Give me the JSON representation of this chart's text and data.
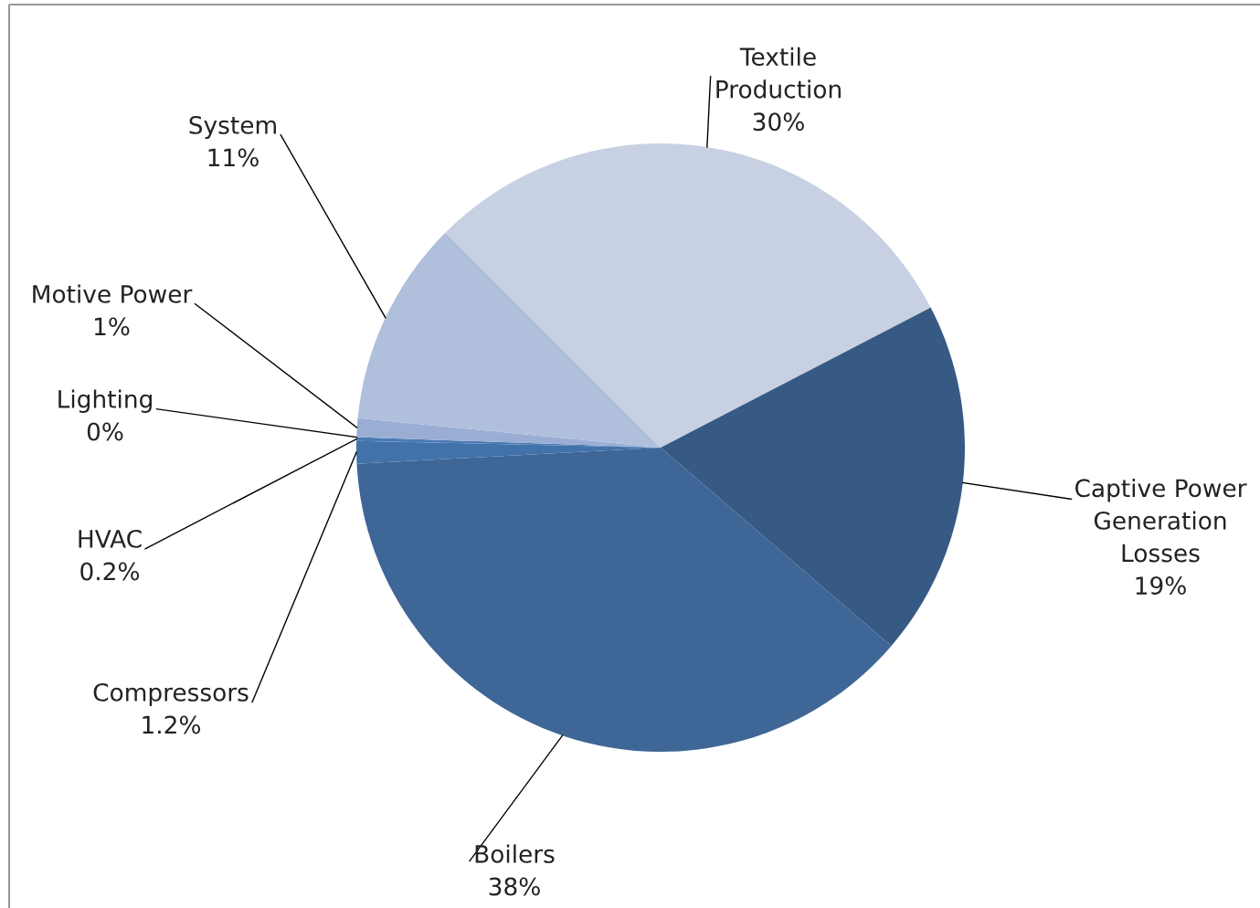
{
  "chart_data": {
    "type": "pie",
    "categories": [
      "Textile\nProduction",
      "Captive Power\nGeneration\nLosses",
      "Boilers",
      "Compressors",
      "HVAC",
      "Lighting",
      "Motive Power",
      "System"
    ],
    "values": [
      30,
      19,
      38,
      1.2,
      0.2,
      0,
      1,
      11
    ],
    "value_labels": [
      "30%",
      "19%",
      "38%",
      "1.2%",
      "0.2%",
      "0%",
      "1%",
      "11%"
    ],
    "colors": [
      "#c8d1e3",
      "#375a84",
      "#3e6696",
      "#4272aa",
      "#4a7ab4",
      "#6f90c4",
      "#9aaed4",
      "#afbfdc"
    ]
  }
}
